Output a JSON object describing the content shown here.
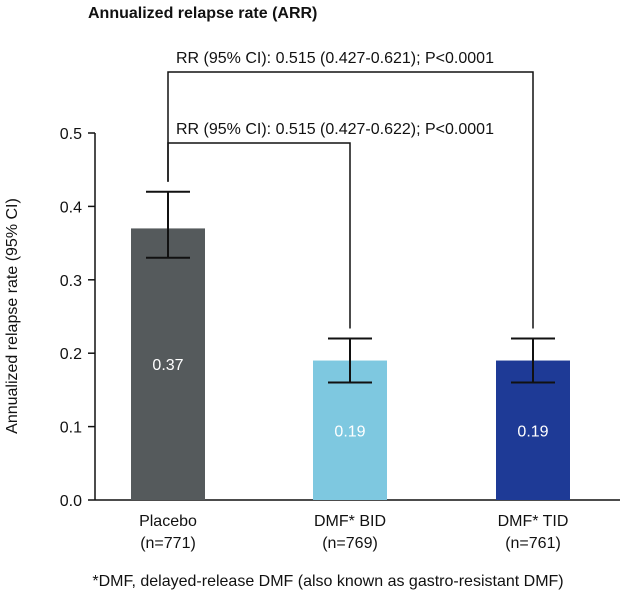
{
  "chart_data": {
    "type": "bar",
    "title": "Annualized relapse rate (ARR)",
    "ylabel": "Annualized relapse rate (95% CI)",
    "xlabel": "",
    "ylim": [
      0,
      0.5
    ],
    "yticks": [
      "0.0",
      "0.1",
      "0.2",
      "0.3",
      "0.4",
      "0.5"
    ],
    "categories": [
      {
        "name": "Placebo",
        "n": "(n=771)"
      },
      {
        "name": "DMF* BID",
        "n": "(n=769)"
      },
      {
        "name": "DMF* TID",
        "n": "(n=761)"
      }
    ],
    "values": [
      0.37,
      0.19,
      0.19
    ],
    "value_labels": [
      "0.37",
      "0.19",
      "0.19"
    ],
    "ci_low": [
      0.33,
      0.16,
      0.16
    ],
    "ci_high": [
      0.42,
      0.22,
      0.22
    ],
    "colors": [
      "#555a5c",
      "#7ec8e0",
      "#1e3a96"
    ],
    "value_label_color": "#ffffff",
    "comparisons": [
      {
        "text": "RR (95% CI): 0.515 (0.427-0.621); P<0.0001",
        "from": 0,
        "to": 2
      },
      {
        "text": "RR (95% CI): 0.515 (0.427-0.622); P<0.0001",
        "from": 0,
        "to": 1
      }
    ],
    "footnote": "*DMF, delayed-release DMF (also known as gastro-resistant DMF)",
    "grid": false,
    "legend": "none"
  }
}
